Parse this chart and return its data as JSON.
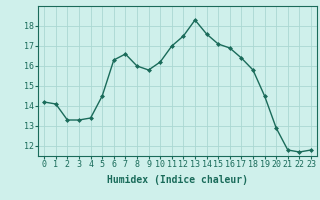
{
  "x": [
    0,
    1,
    2,
    3,
    4,
    5,
    6,
    7,
    8,
    9,
    10,
    11,
    12,
    13,
    14,
    15,
    16,
    17,
    18,
    19,
    20,
    21,
    22,
    23
  ],
  "y": [
    14.2,
    14.1,
    13.3,
    13.3,
    13.4,
    14.5,
    16.3,
    16.6,
    16.0,
    15.8,
    16.2,
    17.0,
    17.5,
    18.3,
    17.6,
    17.1,
    16.9,
    16.4,
    15.8,
    14.5,
    12.9,
    11.8,
    11.7,
    11.8
  ],
  "line_color": "#1a6b5a",
  "marker": "D",
  "marker_size": 2.0,
  "bg_color": "#cff0eb",
  "grid_color": "#aad8d2",
  "xlabel": "Humidex (Indice chaleur)",
  "ylim": [
    11.5,
    19.0
  ],
  "xlim": [
    -0.5,
    23.5
  ],
  "yticks": [
    12,
    13,
    14,
    15,
    16,
    17,
    18
  ],
  "xticks": [
    0,
    1,
    2,
    3,
    4,
    5,
    6,
    7,
    8,
    9,
    10,
    11,
    12,
    13,
    14,
    15,
    16,
    17,
    18,
    19,
    20,
    21,
    22,
    23
  ],
  "label_fontsize": 7,
  "tick_fontsize": 6
}
